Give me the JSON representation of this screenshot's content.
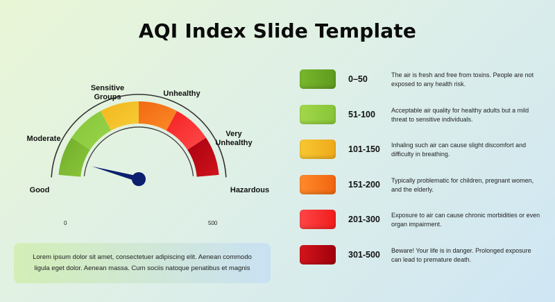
{
  "title": "AQI Index Slide Template",
  "gauge": {
    "min_label": "0",
    "max_label": "500",
    "needle_value": 30,
    "segments": [
      {
        "name": "Good",
        "label_lines": [
          "Good"
        ],
        "color_from": "#6fab2a",
        "color_to": "#8cc83b"
      },
      {
        "name": "Moderate",
        "label_lines": [
          "Moderate"
        ],
        "color_from": "#84c53a",
        "color_to": "#9bd44a"
      },
      {
        "name": "Sensitive Groups",
        "label_lines": [
          "Sensitive",
          "Groups"
        ],
        "color_from": "#f2b51c",
        "color_to": "#f7cd3a"
      },
      {
        "name": "Unhealthy",
        "label_lines": [
          "Unhealthy"
        ],
        "color_from": "#f26a12",
        "color_to": "#fb8a28"
      },
      {
        "name": "Very Unhealthy",
        "label_lines": [
          "Very",
          "Unhealthy"
        ],
        "color_from": "#f42121",
        "color_to": "#ff4a4a"
      },
      {
        "name": "Hazardous",
        "label_lines": [
          "Hazardous"
        ],
        "color_from": "#a8000f",
        "color_to": "#d0141c"
      }
    ]
  },
  "legend": [
    {
      "range": "0–50",
      "description": "The air is fresh and free from toxins. People are not exposed to any health risk.",
      "color_from": "#79b82d",
      "color_to": "#5e9a1f"
    },
    {
      "range": "51-100",
      "description": "Acceptable air quality for healthy adults but a mild threat to sensitive individuals.",
      "color_from": "#a3d94a",
      "color_to": "#86c437"
    },
    {
      "range": "101-150",
      "description": "Inhaling such air can cause slight discomfort and difficulty in breathing.",
      "color_from": "#f8c832",
      "color_to": "#eea91a"
    },
    {
      "range": "151-200",
      "description": "Typically problematic for children, pregnant women, and the elderly.",
      "color_from": "#ff8a2a",
      "color_to": "#f06510"
    },
    {
      "range": "201-300",
      "description": "Exposure to air can cause chronic morbidities or even organ impairment.",
      "color_from": "#ff4646",
      "color_to": "#f01c1c"
    },
    {
      "range": "301-500",
      "description": "Beware! Your life is in danger. Prolonged exposure can lead to premature death.",
      "color_from": "#d4151c",
      "color_to": "#a0000c"
    }
  ],
  "note": {
    "text": "Lorem ipsum dolor sit amet, consectetuer adipiscing elit. Aenean commodo ligula eget dolor. Aenean massa. Cum sociis natoque penatibus et magnis"
  }
}
